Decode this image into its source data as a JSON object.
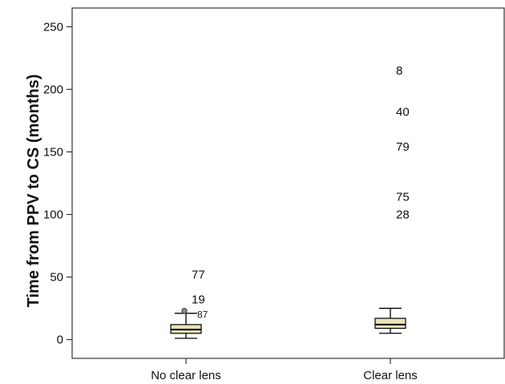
{
  "chart_data": {
    "type": "box",
    "title": "",
    "xlabel": "",
    "ylabel": "Time from PPV to CS (months)",
    "ylim": [
      -15,
      265
    ],
    "yticks": [
      0,
      50,
      100,
      150,
      200,
      250
    ],
    "categories": [
      "No clear lens",
      "Clear lens"
    ],
    "grid": false,
    "legend": "none",
    "box_fill": "#e9e2b8",
    "boxes": [
      {
        "category": "No clear lens",
        "min": 1,
        "q1": 5,
        "median": 8,
        "q3": 12,
        "max": 21,
        "outliers": [
          {
            "value": 23,
            "marker": "circle",
            "label": ""
          },
          {
            "value": 20,
            "marker": "none",
            "label": "87"
          },
          {
            "value": 32,
            "marker": "none",
            "label": "19"
          },
          {
            "value": 52,
            "marker": "none",
            "label": "77"
          }
        ]
      },
      {
        "category": "Clear lens",
        "min": 5,
        "q1": 9,
        "median": 12,
        "q3": 17,
        "max": 25,
        "outliers": [
          {
            "value": 215,
            "marker": "none",
            "label": "8"
          },
          {
            "value": 182,
            "marker": "none",
            "label": "40"
          },
          {
            "value": 154,
            "marker": "none",
            "label": "79"
          },
          {
            "value": 114,
            "marker": "none",
            "label": "75"
          },
          {
            "value": 100,
            "marker": "none",
            "label": "28"
          }
        ]
      }
    ]
  }
}
